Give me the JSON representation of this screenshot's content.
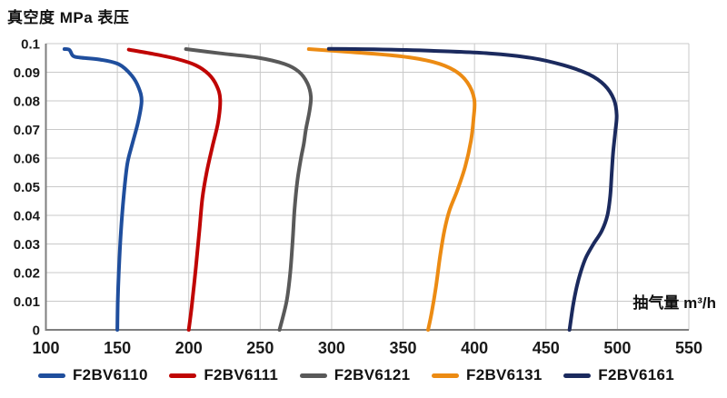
{
  "title": "真空度 MPa 表压",
  "x_axis_label": "抽气量 m³/h",
  "chart_data": {
    "type": "line",
    "title": "真空度 MPa 表压",
    "xlabel": "抽气量 m³/h",
    "ylabel": "真空度 MPa 表压",
    "xlim": [
      100,
      550
    ],
    "ylim": [
      0,
      0.1
    ],
    "grid": true,
    "legend_position": "bottom",
    "xticks": [
      100,
      150,
      200,
      250,
      300,
      350,
      400,
      450,
      500,
      550
    ],
    "xtick_labels": [
      "100",
      "150",
      "200",
      "250",
      "300",
      "350",
      "400",
      "450",
      "500",
      "550"
    ],
    "yticks": [
      0,
      0.01,
      0.02,
      0.03,
      0.04,
      0.05,
      0.06,
      0.07,
      0.08,
      0.09,
      0.1
    ],
    "ytick_labels": [
      "0",
      "0.01",
      "0.02",
      "0.03",
      "0.04",
      "0.05",
      "0.06",
      "0.07",
      "0.08",
      "0.09",
      "0.1"
    ],
    "colors": {
      "grid": "#c9c9c9",
      "axis": "#7f7f7f",
      "text": "#1a1a1a"
    },
    "series": [
      {
        "name": "F2BV6110",
        "color": "#1F4E9D",
        "points": [
          [
            113,
            0.0981
          ],
          [
            116.5,
            0.0978
          ],
          [
            119,
            0.0957
          ],
          [
            124,
            0.0951
          ],
          [
            138,
            0.0944
          ],
          [
            151,
            0.0928
          ],
          [
            160,
            0.0889
          ],
          [
            165,
            0.0845
          ],
          [
            167,
            0.0798
          ],
          [
            164.5,
            0.0725
          ],
          [
            160.5,
            0.065
          ],
          [
            157,
            0.058
          ],
          [
            154.5,
            0.047
          ],
          [
            152.5,
            0.034
          ],
          [
            151,
            0.02
          ],
          [
            150.3,
            0.01
          ],
          [
            150,
            0
          ]
        ]
      },
      {
        "name": "F2BV6111",
        "color": "#C00504",
        "points": [
          [
            158,
            0.0979
          ],
          [
            175,
            0.0964
          ],
          [
            192,
            0.0946
          ],
          [
            205,
            0.0924
          ],
          [
            214,
            0.0893
          ],
          [
            219.5,
            0.0853
          ],
          [
            222,
            0.0805
          ],
          [
            220.5,
            0.0725
          ],
          [
            216.5,
            0.064
          ],
          [
            212.5,
            0.055
          ],
          [
            209.5,
            0.046
          ],
          [
            207.5,
            0.035
          ],
          [
            205,
            0.022
          ],
          [
            202,
            0.008
          ],
          [
            200,
            0
          ]
        ]
      },
      {
        "name": "F2BV6121",
        "color": "#595959",
        "points": [
          [
            198,
            0.0981
          ],
          [
            222,
            0.0966
          ],
          [
            248,
            0.0951
          ],
          [
            267,
            0.0929
          ],
          [
            277,
            0.0902
          ],
          [
            283,
            0.0862
          ],
          [
            285.5,
            0.0815
          ],
          [
            284.5,
            0.0765
          ],
          [
            282,
            0.07
          ],
          [
            280.5,
            0.065
          ],
          [
            278.5,
            0.0598
          ],
          [
            276,
            0.052
          ],
          [
            274,
            0.042
          ],
          [
            272.8,
            0.032
          ],
          [
            271,
            0.02
          ],
          [
            268.5,
            0.01
          ],
          [
            263.5,
            0
          ]
        ]
      },
      {
        "name": "F2BV6131",
        "color": "#EC8B13",
        "points": [
          [
            284,
            0.0981
          ],
          [
            312,
            0.0971
          ],
          [
            348,
            0.0956
          ],
          [
            371,
            0.0936
          ],
          [
            386,
            0.0906
          ],
          [
            395,
            0.0864
          ],
          [
            399.8,
            0.0805
          ],
          [
            399.3,
            0.0738
          ],
          [
            397.5,
            0.066
          ],
          [
            393.5,
            0.057
          ],
          [
            388,
            0.0488
          ],
          [
            382.5,
            0.0418
          ],
          [
            379,
            0.0348
          ],
          [
            376,
            0.026
          ],
          [
            373,
            0.015
          ],
          [
            370,
            0.006
          ],
          [
            367.5,
            0
          ]
        ]
      },
      {
        "name": "F2BV6161",
        "color": "#1B2A5E",
        "points": [
          [
            298,
            0.0982
          ],
          [
            330,
            0.098
          ],
          [
            370,
            0.0975
          ],
          [
            410,
            0.0966
          ],
          [
            440,
            0.095
          ],
          [
            462,
            0.0925
          ],
          [
            480,
            0.0893
          ],
          [
            491,
            0.0855
          ],
          [
            497.5,
            0.0805
          ],
          [
            499.5,
            0.075
          ],
          [
            498.5,
            0.069
          ],
          [
            497,
            0.062
          ],
          [
            496,
            0.0545
          ],
          [
            495,
            0.0468
          ],
          [
            493,
            0.04
          ],
          [
            489,
            0.0345
          ],
          [
            483,
            0.0298
          ],
          [
            478,
            0.0253
          ],
          [
            474.5,
            0.0205
          ],
          [
            471.5,
            0.015
          ],
          [
            469,
            0.0085
          ],
          [
            466.5,
            0
          ]
        ]
      }
    ]
  }
}
